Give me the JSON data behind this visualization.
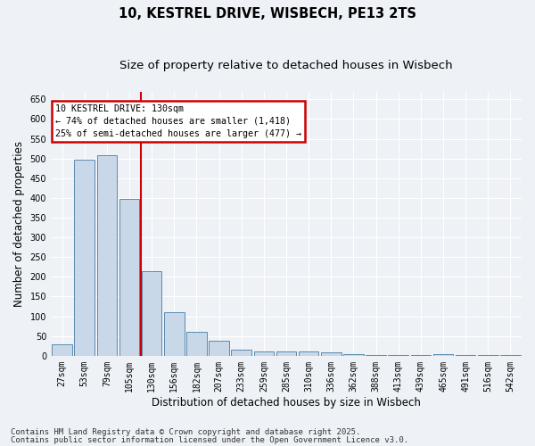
{
  "title1": "10, KESTREL DRIVE, WISBECH, PE13 2TS",
  "title2": "Size of property relative to detached houses in Wisbech",
  "xlabel": "Distribution of detached houses by size in Wisbech",
  "ylabel": "Number of detached properties",
  "categories": [
    "27sqm",
    "53sqm",
    "79sqm",
    "105sqm",
    "130sqm",
    "156sqm",
    "182sqm",
    "207sqm",
    "233sqm",
    "259sqm",
    "285sqm",
    "310sqm",
    "336sqm",
    "362sqm",
    "388sqm",
    "413sqm",
    "439sqm",
    "465sqm",
    "491sqm",
    "516sqm",
    "542sqm"
  ],
  "values": [
    30,
    498,
    508,
    398,
    215,
    110,
    60,
    38,
    15,
    12,
    10,
    10,
    8,
    4,
    3,
    3,
    1,
    4,
    1,
    1,
    2
  ],
  "bar_color": "#c8d8e8",
  "bar_edge_color": "#5a8ab0",
  "vline_color": "#cc0000",
  "vline_index": 4,
  "annotation_title": "10 KESTREL DRIVE: 130sqm",
  "annotation_line1": "← 74% of detached houses are smaller (1,418)",
  "annotation_line2": "25% of semi-detached houses are larger (477) →",
  "annotation_box_color": "#cc0000",
  "ylim": [
    0,
    670
  ],
  "yticks": [
    0,
    50,
    100,
    150,
    200,
    250,
    300,
    350,
    400,
    450,
    500,
    550,
    600,
    650
  ],
  "background_color": "#eef2f7",
  "footer1": "Contains HM Land Registry data © Crown copyright and database right 2025.",
  "footer2": "Contains public sector information licensed under the Open Government Licence v3.0.",
  "title_fontsize": 10.5,
  "subtitle_fontsize": 9.5,
  "tick_fontsize": 7,
  "label_fontsize": 8.5,
  "footer_fontsize": 6.5
}
